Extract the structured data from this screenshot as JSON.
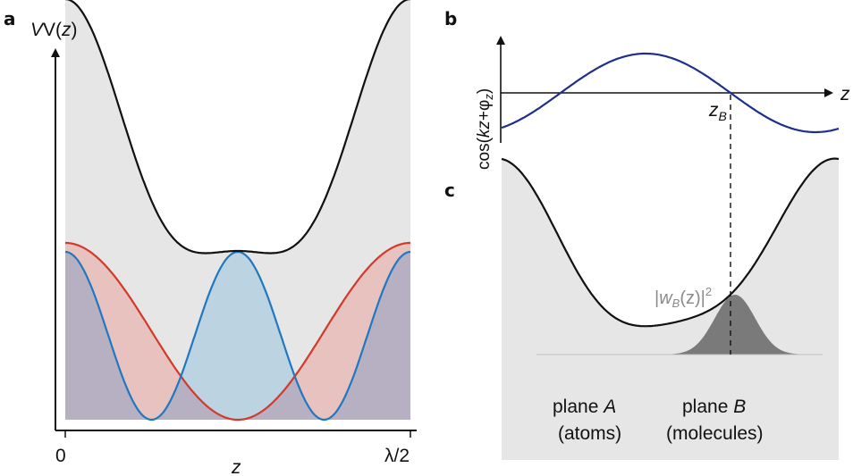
{
  "panels": {
    "a": {
      "label": "a",
      "ylabel_main": "V(",
      "ylabel_var": "z",
      "ylabel_close": ")",
      "xlabel": "z",
      "x_start": "0",
      "x_end": "λ/2"
    },
    "b": {
      "label": "b",
      "ylabel_pre": "cos(",
      "ylabel_k": "kz",
      "ylabel_plus": "+φ",
      "ylabel_sub": "z",
      "ylabel_close": ")",
      "axis_label": "z",
      "zb_main": "z",
      "zb_sub": "B"
    },
    "c": {
      "label": "c",
      "wavefunction_open": "|",
      "wavefunction_w": "w",
      "wavefunction_sub": "B",
      "wavefunction_arg": "(z)",
      "wavefunction_close": "|",
      "wavefunction_pow": "2",
      "plane_a_title": "plane ",
      "plane_a_letter": "A",
      "plane_a_sub": "(atoms)",
      "plane_b_title": "plane ",
      "plane_b_letter": "B",
      "plane_b_sub": "(molecules)"
    }
  },
  "colors": {
    "black_curve": "#111111",
    "red_curve": "#d23a2a",
    "blue_curve": "#1f78c1",
    "navy_curve": "#1f2f8a",
    "gray_fill": "#e6e6e6",
    "red_fill": "#e8c2bf",
    "blue_fill": "#bcd3e2",
    "overlap_fill": "#b7b0c2",
    "wavefunction_fill": "#7a7a7a",
    "wavefunction_label": "#8a8a8a"
  }
}
